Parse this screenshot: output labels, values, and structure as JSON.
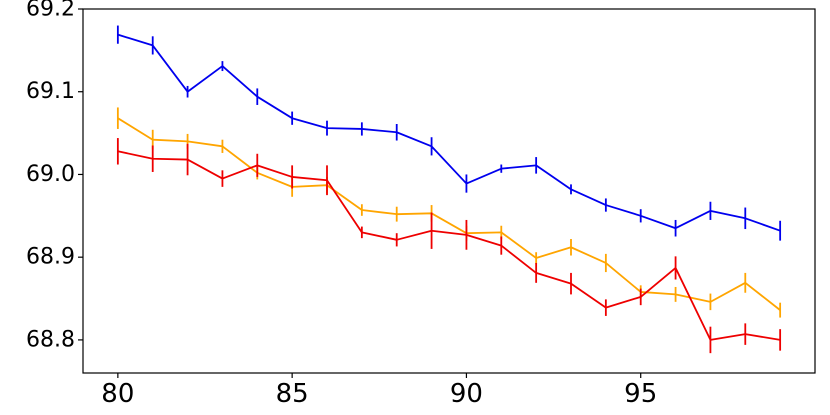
{
  "chart_data": {
    "type": "line",
    "title": "",
    "xlabel": "",
    "ylabel": "",
    "xlim": [
      79.0,
      100.0
    ],
    "ylim": [
      68.76,
      69.2
    ],
    "xticks": [
      "80",
      "85",
      "90",
      "95"
    ],
    "yticks": [
      "68.8",
      "68.9",
      "69.0",
      "69.1",
      "69.2"
    ],
    "grid": false,
    "x": [
      80,
      81,
      82,
      83,
      84,
      85,
      86,
      87,
      88,
      89,
      90,
      91,
      92,
      93,
      94,
      95,
      96,
      97,
      98,
      99
    ],
    "series": [
      {
        "color": "#0000ee",
        "values": [
          69.169,
          69.156,
          69.1,
          69.131,
          69.094,
          69.068,
          69.056,
          69.055,
          69.051,
          69.034,
          68.989,
          69.007,
          69.011,
          68.982,
          68.963,
          68.95,
          68.935,
          68.956,
          68.947,
          68.932
        ],
        "errors": [
          0.011,
          0.011,
          0.007,
          0.006,
          0.01,
          0.008,
          0.009,
          0.008,
          0.01,
          0.011,
          0.011,
          0.005,
          0.01,
          0.006,
          0.008,
          0.008,
          0.01,
          0.011,
          0.013,
          0.012
        ]
      },
      {
        "color": "#ffa500",
        "values": [
          69.068,
          69.042,
          69.04,
          69.034,
          69.002,
          68.985,
          68.987,
          68.957,
          68.952,
          68.953,
          68.929,
          68.93,
          68.899,
          68.912,
          68.893,
          68.858,
          68.855,
          68.846,
          68.869,
          68.836
        ],
        "errors": [
          0.013,
          0.012,
          0.009,
          0.008,
          0.008,
          0.012,
          0.01,
          0.007,
          0.009,
          0.01,
          0.009,
          0.008,
          0.007,
          0.01,
          0.011,
          0.008,
          0.009,
          0.01,
          0.012,
          0.009
        ]
      },
      {
        "color": "#ee0000",
        "values": [
          69.028,
          69.019,
          69.018,
          68.995,
          69.011,
          68.997,
          68.993,
          68.93,
          68.921,
          68.932,
          68.927,
          68.914,
          68.881,
          68.868,
          68.839,
          68.852,
          68.887,
          68.8,
          68.807,
          68.8
        ],
        "errors": [
          0.016,
          0.016,
          0.019,
          0.01,
          0.014,
          0.014,
          0.018,
          0.007,
          0.008,
          0.022,
          0.018,
          0.011,
          0.012,
          0.013,
          0.01,
          0.01,
          0.014,
          0.016,
          0.013,
          0.013
        ]
      }
    ]
  }
}
